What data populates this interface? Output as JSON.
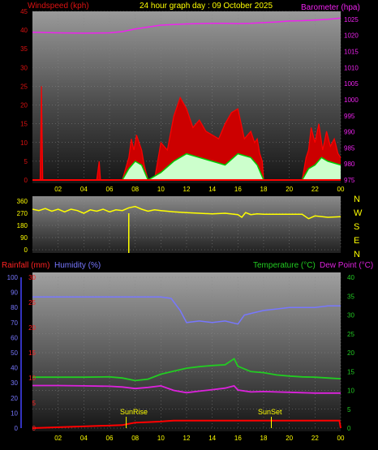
{
  "header": {
    "windspeed_label": "Windspeed (kph)",
    "title": "24 hour graph day : 09 October 2025",
    "barometer_label": "Barometer (hpa)"
  },
  "bottom_header": {
    "rainfall_label": "Rainfall (mm)",
    "humidity_label": "Humidity (%)",
    "temperature_label": "Temperature (°C)",
    "dewpoint_label": "Dew Point (°C)"
  },
  "colors": {
    "wind": "#ff0000",
    "gust_fill": "#cc0000",
    "avg_wind": "#00cc00",
    "wind_light": "#ccffcc",
    "barometer": "#ee22ee",
    "direction": "#ffff00",
    "humidity": "#7777ff",
    "temperature": "#22cc22",
    "dewpoint": "#dd22dd",
    "rain": "#ff0000",
    "text_yellow": "#ffff00",
    "grid": "#888888"
  },
  "x_ticks": [
    "02",
    "04",
    "06",
    "08",
    "10",
    "12",
    "14",
    "16",
    "18",
    "20",
    "22",
    "00"
  ],
  "compass": [
    "N",
    "W",
    "S",
    "E",
    "N"
  ],
  "sun": {
    "sunrise_label": "SunRise",
    "sunset_label": "SunSet",
    "sunrise_hour": 7.3,
    "sunset_hour": 18.6
  },
  "chart_data": [
    {
      "type": "line",
      "title": "24 hour graph day : 09 October 2025",
      "x_unit": "hour",
      "y_left": {
        "label": "Windspeed (kph)",
        "ticks": [
          0,
          5,
          10,
          15,
          20,
          25,
          30,
          35,
          40,
          45
        ],
        "lim": [
          0,
          45
        ]
      },
      "y_right": {
        "label": "Barometer (hpa)",
        "ticks": [
          975,
          980,
          985,
          990,
          995,
          1000,
          1005,
          1010,
          1015,
          1020,
          1025
        ],
        "lim": [
          975,
          1027.5
        ]
      },
      "series": [
        {
          "name": "Windspeed (kph)",
          "x": [
            0,
            0.6,
            0.7,
            0.8,
            1,
            2,
            4,
            5,
            5.2,
            5.3,
            5.5,
            7,
            7.5,
            7.7,
            7.9,
            8.1,
            8.3,
            8.5,
            8.7,
            9,
            9.5,
            10,
            10.5,
            11,
            11.5,
            12,
            12.5,
            13,
            13.5,
            14,
            14.5,
            15,
            15.5,
            16,
            16.5,
            17,
            17.3,
            17.5,
            17.7,
            17.9,
            18,
            19,
            20,
            21,
            21.3,
            21.5,
            21.7,
            22,
            22.3,
            22.6,
            22.9,
            23.2,
            23.5,
            23.8,
            24
          ],
          "y": [
            0,
            0,
            25,
            0,
            0,
            0,
            0,
            0,
            5,
            0,
            0,
            0,
            6,
            11,
            8,
            12,
            10,
            8,
            4,
            0,
            0,
            10,
            8,
            17,
            22,
            19,
            14,
            16,
            13,
            12,
            11,
            15,
            18,
            19,
            11,
            13,
            10,
            11,
            7,
            5,
            0,
            0,
            0,
            0,
            6,
            8,
            14,
            10,
            15,
            8,
            13,
            9,
            11,
            7,
            6
          ]
        },
        {
          "name": "Average windspeed",
          "x": [
            0,
            7,
            7.5,
            8,
            8.5,
            9,
            10,
            11,
            12,
            13,
            14,
            15,
            16,
            17,
            17.5,
            18,
            21,
            21.5,
            22,
            22.5,
            23,
            24
          ],
          "y": [
            0,
            0,
            3,
            5,
            4,
            0,
            2,
            5,
            7,
            6,
            5,
            4,
            7,
            6,
            4,
            0,
            0,
            3,
            4,
            6,
            5,
            4
          ]
        },
        {
          "name": "Barometer (hpa)",
          "x": [
            0,
            2,
            4,
            6,
            7,
            8,
            9,
            10,
            11,
            12,
            13,
            14,
            15,
            16,
            17,
            18,
            19,
            20,
            21,
            22,
            23,
            24
          ],
          "y": [
            1021,
            1020.8,
            1020.7,
            1020.8,
            1021.2,
            1022.0,
            1022.6,
            1023.2,
            1023.4,
            1023.6,
            1023.7,
            1023.8,
            1023.8,
            1023.7,
            1023.8,
            1024.0,
            1024.2,
            1024.5,
            1024.6,
            1024.8,
            1025.0,
            1025.4
          ]
        }
      ]
    },
    {
      "type": "line",
      "y": {
        "label": "Wind direction (°)",
        "ticks": [
          0,
          90,
          180,
          270,
          360
        ],
        "lim": [
          0,
          360
        ]
      },
      "series": [
        {
          "name": "Wind direction",
          "x": [
            0,
            0.5,
            1,
            1.5,
            2,
            2.5,
            3,
            3.5,
            4,
            4.5,
            5,
            5.5,
            6,
            6.5,
            7,
            7.5,
            8,
            8.5,
            9,
            9.5,
            10,
            11,
            12,
            13,
            14,
            15,
            16,
            16.3,
            16.6,
            17,
            17.5,
            18,
            19,
            20,
            21,
            21.5,
            22,
            23,
            24
          ],
          "y": [
            300,
            290,
            305,
            285,
            300,
            280,
            300,
            290,
            270,
            295,
            285,
            300,
            280,
            295,
            290,
            310,
            320,
            300,
            285,
            295,
            290,
            280,
            275,
            270,
            265,
            270,
            260,
            240,
            275,
            260,
            265,
            262,
            262,
            262,
            262,
            230,
            250,
            240,
            245
          ]
        }
      ],
      "spike": {
        "hour": 7.5,
        "value": 0
      }
    },
    {
      "type": "line",
      "y_left_rain": {
        "label": "Rainfall (mm)",
        "ticks": [
          0,
          5,
          10,
          15,
          20,
          25,
          30
        ],
        "lim": [
          0,
          30
        ]
      },
      "y_left_humidity": {
        "label": "Humidity (%)",
        "ticks": [
          0,
          10,
          20,
          30,
          40,
          50,
          60,
          70,
          80,
          90,
          100
        ],
        "lim": [
          0,
          100
        ]
      },
      "y_right": {
        "label": "Temperature (°C)",
        "ticks": [
          0,
          5,
          10,
          15,
          20,
          25,
          30,
          35,
          40
        ],
        "lim": [
          0,
          40
        ]
      },
      "series": [
        {
          "name": "Humidity (%)",
          "x": [
            0,
            2,
            4,
            6,
            8,
            10,
            10.8,
            11.5,
            12,
            13,
            14,
            15,
            15.5,
            16,
            16.5,
            17,
            18,
            19,
            20,
            21,
            22,
            23,
            24
          ],
          "y": [
            87,
            87,
            87,
            87,
            87,
            87,
            86,
            78,
            70,
            71,
            70,
            71,
            70,
            69,
            75,
            76,
            78,
            79,
            80,
            80,
            80,
            81,
            81
          ]
        },
        {
          "name": "Temperature (°C)",
          "x": [
            0,
            2,
            4,
            6,
            7,
            8,
            9,
            10,
            11,
            12,
            13,
            14,
            15,
            15.7,
            16,
            17,
            18,
            19,
            20,
            21,
            22,
            23,
            24
          ],
          "y": [
            13.5,
            13.5,
            13.5,
            13.6,
            13.3,
            12.6,
            13.0,
            14.3,
            15.1,
            15.9,
            16.3,
            16.6,
            16.8,
            18.4,
            16.4,
            15.0,
            14.7,
            14.1,
            13.8,
            13.6,
            13.5,
            13.3,
            13.1
          ]
        },
        {
          "name": "Dew Point (°C)",
          "x": [
            0,
            2,
            4,
            6,
            7,
            8,
            9,
            10,
            11,
            12,
            13,
            14,
            15,
            15.7,
            16,
            17,
            18,
            19,
            20,
            21,
            22,
            23,
            24
          ],
          "y": [
            11.3,
            11.3,
            11.2,
            11.1,
            10.9,
            10.5,
            10.8,
            11.2,
            10.0,
            9.4,
            9.8,
            10.2,
            10.6,
            11.2,
            10.1,
            9.6,
            9.7,
            9.6,
            9.5,
            9.4,
            9.3,
            9.3,
            9.3
          ]
        },
        {
          "name": "Rainfall (mm)",
          "x": [
            0,
            7,
            7.4,
            8,
            9,
            10,
            10.5,
            11,
            12,
            14,
            16,
            18,
            20,
            22,
            23.9,
            24
          ],
          "y": [
            0,
            0.6,
            0.8,
            1.1,
            1.2,
            1.3,
            1.4,
            1.5,
            1.5,
            1.5,
            1.5,
            1.5,
            1.5,
            1.5,
            1.5,
            0
          ]
        }
      ]
    }
  ]
}
